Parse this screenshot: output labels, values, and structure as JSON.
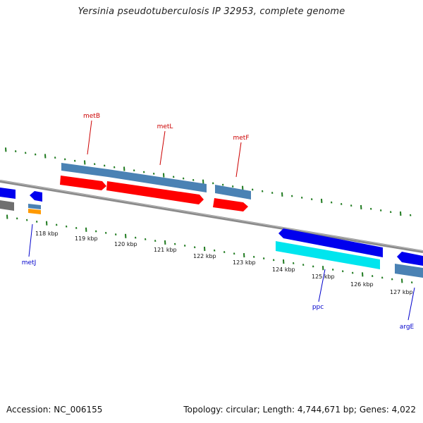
{
  "title": "Yersinia pseudotuberculosis IP 32953, complete genome",
  "footer": {
    "accession": "Accession: NC_006155",
    "summary": "Topology: circular; Length: 4,744,671 bp; Genes: 4,022"
  },
  "colors": {
    "backbone": "#8a8a8a",
    "tick": "#1f7a1f",
    "gene_block": "#4a82b4",
    "cds_red": "#ff0000",
    "cds_blue": "#0000ee",
    "cds_cyan": "#00e5ee",
    "cds_orange": "#ff9900",
    "cds_gray": "#6f6f6f",
    "label_red": "#cc0000",
    "label_blue": "#0000cc"
  },
  "scale_ticks": [
    "118 kbp",
    "119 kbp",
    "120 kbp",
    "121 kbp",
    "122 kbp",
    "123 kbp",
    "124 kbp",
    "125 kbp",
    "126 kbp",
    "127 kbp"
  ],
  "genes": [
    {
      "name": "metB",
      "color": "label_red"
    },
    {
      "name": "metL",
      "color": "label_red"
    },
    {
      "name": "metF",
      "color": "label_red"
    },
    {
      "name": "metJ",
      "color": "label_blue"
    },
    {
      "name": "ppc",
      "color": "label_blue"
    },
    {
      "name": "argE",
      "color": "label_blue"
    }
  ]
}
